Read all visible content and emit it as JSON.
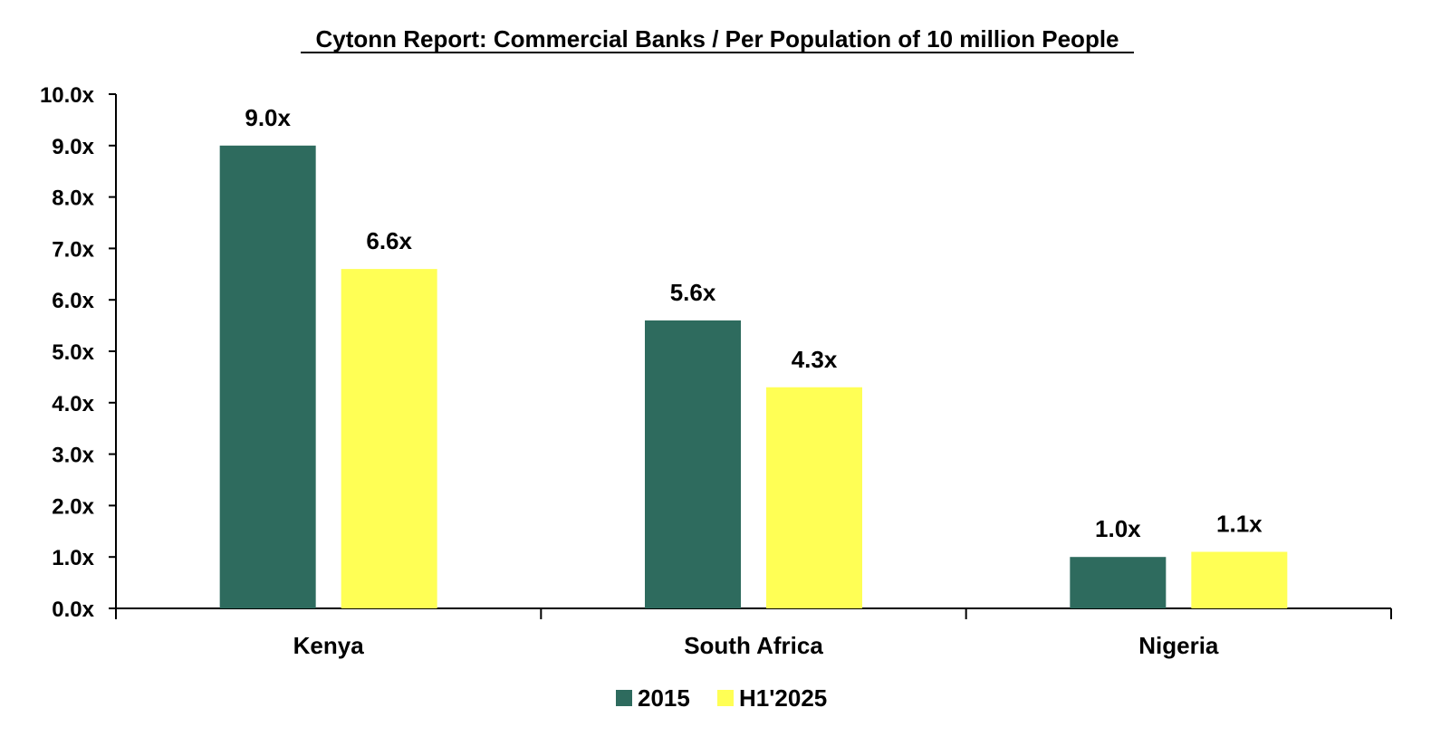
{
  "chart_data": {
    "type": "bar",
    "title": "Cytonn Report: Commercial Banks / Per Population of 10 million People",
    "categories": [
      "Kenya",
      "South Africa",
      "Nigeria"
    ],
    "series": [
      {
        "name": "2015",
        "values": [
          9.0,
          5.6,
          1.0
        ],
        "labels": [
          "9.0x",
          "5.6x",
          "1.0x"
        ],
        "color": "#2E6B5E"
      },
      {
        "name": "H1'2025",
        "values": [
          6.6,
          4.3,
          1.1
        ],
        "labels": [
          "6.6x",
          "4.3x",
          "1.1x"
        ],
        "color": "#FFFF55"
      }
    ],
    "ylim": [
      0,
      10
    ],
    "yticks": [
      {
        "value": 0,
        "label": "0.0x"
      },
      {
        "value": 1,
        "label": "1.0x"
      },
      {
        "value": 2,
        "label": "2.0x"
      },
      {
        "value": 3,
        "label": "3.0x"
      },
      {
        "value": 4,
        "label": "4.0x"
      },
      {
        "value": 5,
        "label": "5.0x"
      },
      {
        "value": 6,
        "label": "6.0x"
      },
      {
        "value": 7,
        "label": "7.0x"
      },
      {
        "value": 8,
        "label": "8.0x"
      },
      {
        "value": 9,
        "label": "9.0x"
      },
      {
        "value": 10,
        "label": "10.0x"
      }
    ],
    "grid": false,
    "legend_position": "bottom-center"
  }
}
